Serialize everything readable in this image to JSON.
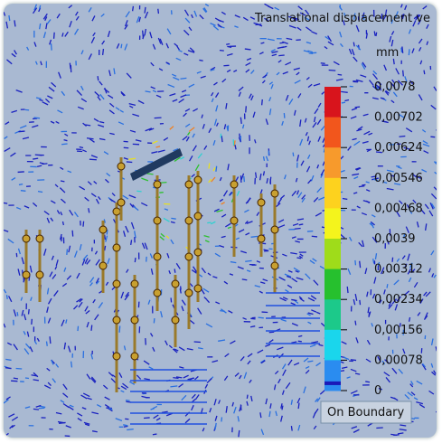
{
  "header": {
    "title": "Translational displacement ve",
    "unit": "mm"
  },
  "legend": {
    "labels": [
      "0,0078",
      "0,00702",
      "0,00624",
      "0,00546",
      "0,00468",
      "0,0039",
      "0,00312",
      "0,00234",
      "0,00156",
      "0,00078",
      "0"
    ],
    "colors": [
      "#d8141c",
      "#f2561c",
      "#f79a2c",
      "#fdd21e",
      "#f4f41c",
      "#9fdc1a",
      "#26c02e",
      "#1cc98a",
      "#1ad6ec",
      "#2a8cf0",
      "#1a1ab8"
    ],
    "footer": "On Boundary"
  }
}
